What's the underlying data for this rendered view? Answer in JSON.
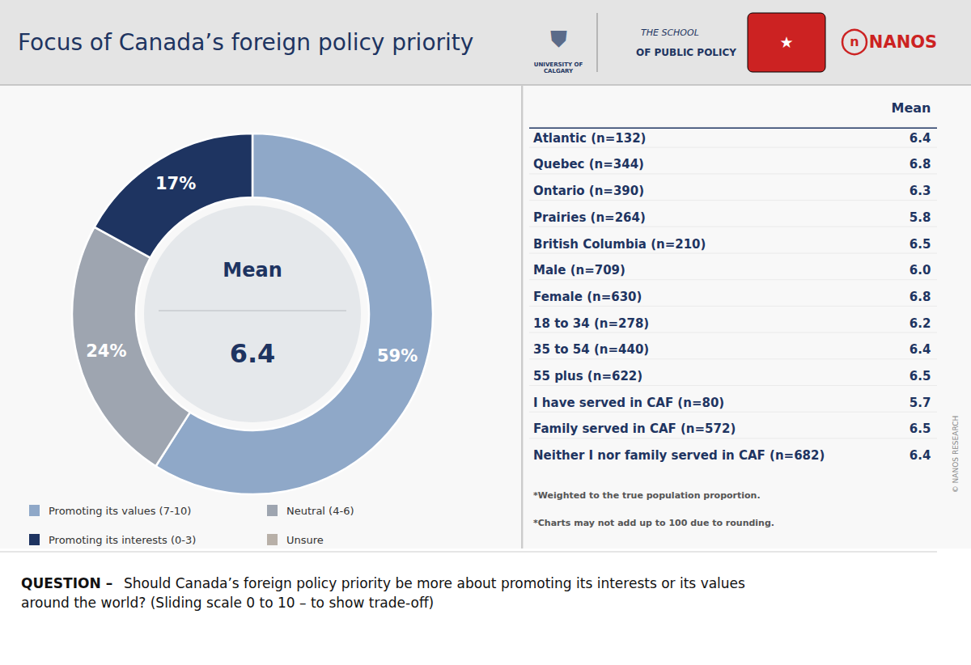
{
  "chart_data": {
    "type": "pie",
    "title": "Focus of Canada’s foreign policy priority",
    "categories": [
      "Promoting its values (7-10)",
      "Neutral (4-6)",
      "Promoting its interests (0-3)",
      "Unsure"
    ],
    "values": [
      59,
      24,
      17,
      null
    ],
    "colors": [
      "#8fa8c8",
      "#9ea5b0",
      "#1e3461",
      "#b8b0a8"
    ],
    "data_labels": true,
    "value_labels": [
      "59%",
      "24%",
      "17%",
      null
    ],
    "legend": "bottom",
    "center_text": {
      "label": "Mean",
      "value": 6.4
    },
    "table": {
      "header": "Mean",
      "categories": [
        "Atlantic (n=132)",
        "Quebec (n=344)",
        "Ontario (n=390)",
        "Prairies (n=264)",
        "British Columbia (n=210)",
        "Male (n=709)",
        "Female (n=630)",
        "18 to 34 (n=278)",
        "35 to 54 (n=440)",
        "55 plus (n=622)",
        "I have served in CAF (n=80)",
        "Family served in CAF (n=572)",
        "Neither I nor family served in CAF (n=682)"
      ],
      "values": [
        6.4,
        6.8,
        6.3,
        5.8,
        6.5,
        6.0,
        6.8,
        6.2,
        6.4,
        6.5,
        5.7,
        6.5,
        6.4
      ],
      "value_labels": [
        "6.4",
        "6.8",
        "6.3",
        "5.8",
        "6.5",
        "6.0",
        "6.8",
        "6.2",
        "6.4",
        "6.5",
        "5.7",
        "6.5",
        "6.4"
      ]
    },
    "notes": [
      "*Weighted to the true population proportion.",
      "*Charts may not add up to 100 due to rounding."
    ],
    "question": [
      "QUESTION –",
      "Should Canada’s foreign policy priority be more about promoting its interests or its values around the world? (Sliding scale 0 to 10 – to show trade-off)"
    ],
    "watermark": "© NANOS RESEARCH",
    "logos": [
      "⛊",
      "UNIVERSITY OF\nCALGARY",
      "THE SCHOOL",
      "OF PUBLIC POLICY",
      "★",
      "n",
      "NANOS"
    ]
  }
}
